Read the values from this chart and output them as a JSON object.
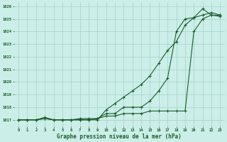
{
  "xlabel": "Graphe pression niveau de la mer (hPa)",
  "background_color": "#cceee8",
  "grid_color": "#aad4ce",
  "line_color": "#1a5c2a",
  "ylim": [
    1016.5,
    1026.3
  ],
  "xlim": [
    -0.5,
    23.5
  ],
  "yticks": [
    1017,
    1018,
    1019,
    1020,
    1021,
    1022,
    1023,
    1024,
    1025,
    1026
  ],
  "xticks": [
    0,
    1,
    2,
    3,
    4,
    5,
    6,
    7,
    8,
    9,
    10,
    11,
    12,
    13,
    14,
    15,
    16,
    17,
    18,
    19,
    20,
    21,
    22,
    23
  ],
  "line1_x": [
    0,
    1,
    2,
    3,
    4,
    5,
    6,
    7,
    8,
    9,
    10,
    11,
    12,
    13,
    14,
    15,
    16,
    17,
    18,
    19,
    20,
    21,
    22,
    23
  ],
  "line1_y": [
    1017.0,
    1017.0,
    1017.0,
    1017.2,
    1017.0,
    1017.0,
    1017.0,
    1017.1,
    1017.1,
    1017.1,
    1017.5,
    1017.5,
    1018.0,
    1018.0,
    1018.0,
    1018.5,
    1019.3,
    1020.3,
    1024.0,
    1025.0,
    1025.1,
    1025.8,
    1025.3,
    1025.3
  ],
  "line2_x": [
    0,
    1,
    2,
    3,
    4,
    5,
    6,
    7,
    8,
    9,
    10,
    11,
    12,
    13,
    14,
    15,
    16,
    17,
    18,
    19,
    20,
    21,
    22,
    23
  ],
  "line2_y": [
    1017.0,
    1017.0,
    1017.0,
    1017.1,
    1017.0,
    1017.0,
    1017.0,
    1017.0,
    1017.0,
    1017.0,
    1017.8,
    1018.3,
    1018.8,
    1019.3,
    1019.8,
    1020.5,
    1021.5,
    1022.5,
    1023.2,
    1024.5,
    1025.1,
    1025.3,
    1025.5,
    1025.3
  ],
  "line3_x": [
    0,
    1,
    2,
    3,
    4,
    5,
    6,
    7,
    8,
    9,
    10,
    11,
    12,
    13,
    14,
    15,
    16,
    17,
    18,
    19,
    20,
    21,
    22,
    23
  ],
  "line3_y": [
    1017.0,
    1017.0,
    1017.0,
    1017.1,
    1017.0,
    1017.0,
    1017.0,
    1017.0,
    1017.0,
    1017.1,
    1017.3,
    1017.3,
    1017.5,
    1017.5,
    1017.5,
    1017.7,
    1017.7,
    1017.7,
    1017.7,
    1017.7,
    1024.0,
    1025.0,
    1025.3,
    1025.2
  ]
}
